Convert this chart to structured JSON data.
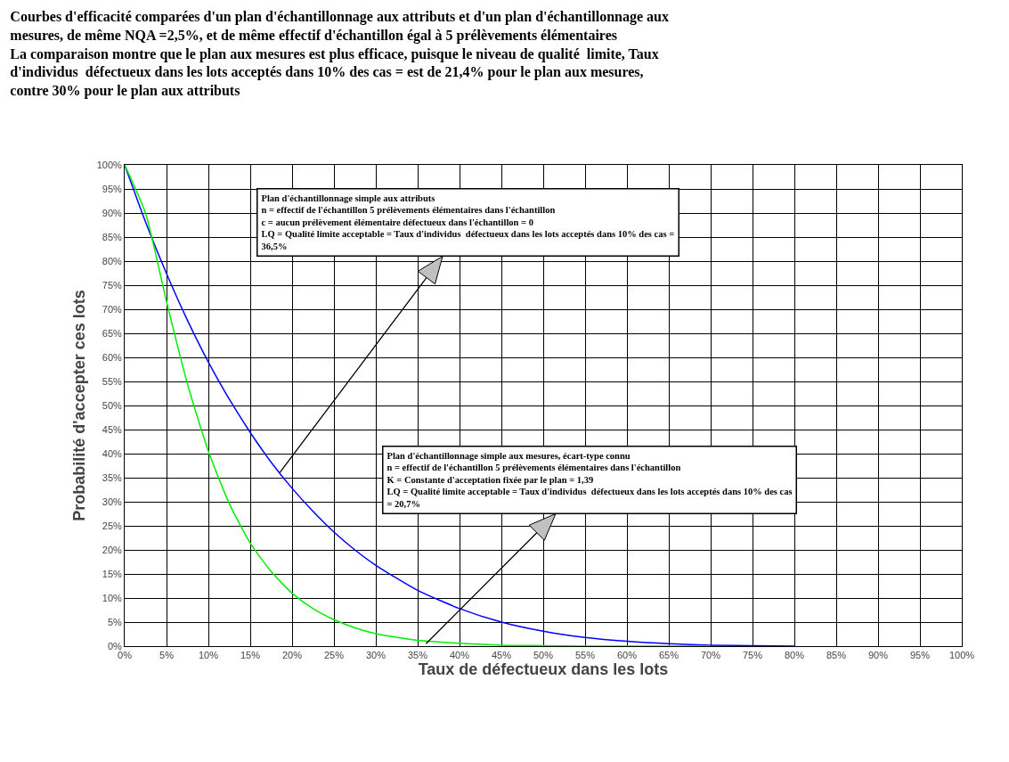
{
  "chart_data": {
    "type": "line",
    "title": "Courbes d'efficacité comparées d'un plan d'échantillonnage aux attributs et d'un plan d'échantillonnage aux mesures, de même NQA =2,5%, et de même effectif d'échantillon égal à 5 prélèvements élémentaires",
    "subtitle": "La comparaison montre que le plan aux mesures est plus efficace, puisque le niveau de qualité  limite, Taux d'individus  défectueux dans les lots acceptés dans 10% des cas = est de 21,4% pour le plan aux mesures, contre 30% pour le plan aux attributs",
    "xlabel": "Taux de défectueux dans les lots",
    "ylabel": "Probabilité d'accepter ces lots",
    "x": [
      0,
      2.5,
      5,
      7.5,
      10,
      12.5,
      15,
      17.5,
      20,
      22.5,
      25,
      27.5,
      30,
      35,
      40,
      45,
      50,
      55,
      60,
      65,
      70,
      80
    ],
    "series": [
      {
        "color": "#0000ff",
        "values": [
          100,
          88.1,
          77.4,
          67.7,
          59,
          51.3,
          44.4,
          38.2,
          32.8,
          28,
          23.7,
          20,
          16.8,
          11.6,
          7.8,
          5,
          3.1,
          1.8,
          1,
          0.5,
          0.2,
          0
        ]
      },
      {
        "color": "#00ee00",
        "values": [
          100,
          89.9,
          71.6,
          54.5,
          40.5,
          29.6,
          21.4,
          15.5,
          11,
          7.8,
          5.5,
          3.8,
          2.6,
          1.2,
          0.6,
          0.2,
          0.1,
          0,
          0,
          0,
          0,
          null
        ]
      }
    ],
    "annotations": [
      {
        "text": "Plan d'échantillonnage simple aux attributs\nn = effectif de l'échantillon 5 prélèvements élémentaires dans l'échantillon\nc = aucun prélèvement élémentaire défectueux dans l'échantillon = 0\nLQ = Qualité limite acceptable = Taux d'individus  défectueux dans les lots acceptés dans 10% des cas =\n36,5%",
        "x": 18.5,
        "y": 36
      },
      {
        "text": "Plan d'échantillonnage simple aux mesures, écart-type connu\nn = effectif de l'échantillon 5 prélèvements élémentaires dans l'échantillon\nK = Constante d'acceptation fixée par le plan = 1,39\nLQ = Qualité limite acceptable = Taux d'individus  défectueux dans les lots acceptés dans 10% des cas\n= 20,7%",
        "x": 36,
        "y": 0.5
      }
    ],
    "xlim": [
      0,
      100
    ],
    "ylim": [
      0,
      100
    ],
    "xticks": [
      {
        "value": 0,
        "label": "0%"
      },
      {
        "value": 5,
        "label": "5%"
      },
      {
        "value": 10,
        "label": "10%"
      },
      {
        "value": 15,
        "label": "15%"
      },
      {
        "value": 20,
        "label": "20%"
      },
      {
        "value": 25,
        "label": "25%"
      },
      {
        "value": 30,
        "label": "30%"
      },
      {
        "value": 35,
        "label": "35%"
      },
      {
        "value": 40,
        "label": "40%"
      },
      {
        "value": 45,
        "label": "45%"
      },
      {
        "value": 50,
        "label": "50%"
      },
      {
        "value": 55,
        "label": "55%"
      },
      {
        "value": 60,
        "label": "60%"
      },
      {
        "value": 65,
        "label": "65%"
      },
      {
        "value": 70,
        "label": "70%"
      },
      {
        "value": 75,
        "label": "75%"
      },
      {
        "value": 80,
        "label": "80%"
      },
      {
        "value": 85,
        "label": "85%"
      },
      {
        "value": 90,
        "label": "90%"
      },
      {
        "value": 95,
        "label": "95%"
      },
      {
        "value": 100,
        "label": "100%"
      }
    ],
    "yticks": [
      {
        "value": 0,
        "label": "0%"
      },
      {
        "value": 5,
        "label": "5%"
      },
      {
        "value": 10,
        "label": "10%"
      },
      {
        "value": 15,
        "label": "15%"
      },
      {
        "value": 20,
        "label": "20%"
      },
      {
        "value": 25,
        "label": "25%"
      },
      {
        "value": 30,
        "label": "30%"
      },
      {
        "value": 35,
        "label": "35%"
      },
      {
        "value": 40,
        "label": "40%"
      },
      {
        "value": 45,
        "label": "45%"
      },
      {
        "value": 50,
        "label": "50%"
      },
      {
        "value": 55,
        "label": "55%"
      },
      {
        "value": 60,
        "label": "60%"
      },
      {
        "value": 65,
        "label": "65%"
      },
      {
        "value": 70,
        "label": "70%"
      },
      {
        "value": 75,
        "label": "75%"
      },
      {
        "value": 80,
        "label": "80%"
      },
      {
        "value": 85,
        "label": "85%"
      },
      {
        "value": 90,
        "label": "90%"
      },
      {
        "value": 95,
        "label": "95%"
      },
      {
        "value": 100,
        "label": "100%"
      }
    ],
    "grid": true,
    "marker": "none",
    "line_style": "solid"
  }
}
